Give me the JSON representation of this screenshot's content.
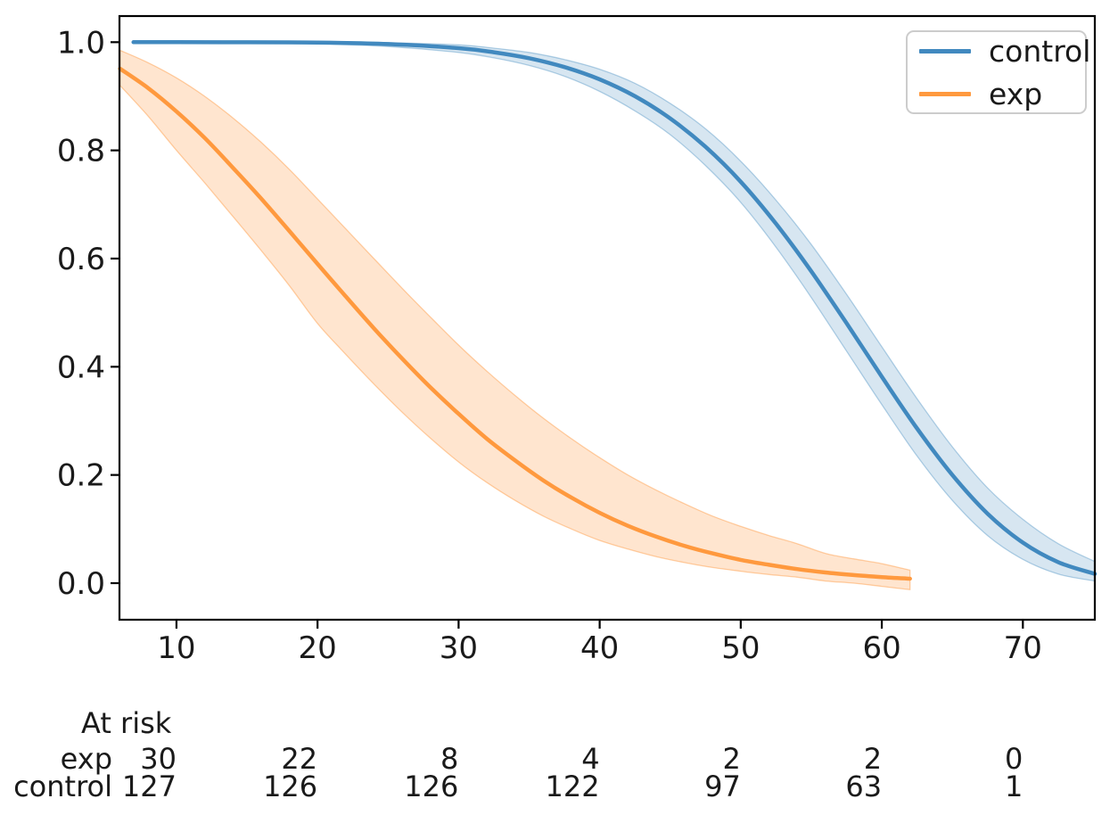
{
  "legend": {
    "items": [
      {
        "label": "control",
        "color": "#4189bf"
      },
      {
        "label": "exp",
        "color": "#ff993e"
      }
    ]
  },
  "at_risk": {
    "title": "At risk",
    "rows": [
      {
        "label": "exp",
        "counts": [
          "30",
          "22",
          "8",
          "4",
          "2",
          "2",
          "0"
        ]
      },
      {
        "label": "control",
        "counts": [
          "127",
          "126",
          "126",
          "122",
          "97",
          "63",
          "1"
        ]
      }
    ]
  },
  "chart_data": {
    "type": "line",
    "title": "",
    "xlabel": "",
    "ylabel": "",
    "grid": false,
    "legend_position": "upper right",
    "xlim": [
      5.96,
      75.1
    ],
    "ylim": [
      -0.0676,
      1.0483
    ],
    "x_ticks": [
      10,
      20,
      30,
      40,
      50,
      60,
      70
    ],
    "x_tick_labels": [
      "10",
      "20",
      "30",
      "40",
      "50",
      "60",
      "70"
    ],
    "y_ticks": [
      0.0,
      0.2,
      0.4,
      0.6,
      0.8,
      1.0
    ],
    "y_tick_labels": [
      "0.0",
      "0.2",
      "0.4",
      "0.6",
      "0.8",
      "1.0"
    ],
    "series": [
      {
        "name": "control",
        "line_color": "#4189bf",
        "band_fill": "rgba(31,119,180,0.18)",
        "band_edge": "rgba(31,119,180,0.32)",
        "points_format": [
          "x",
          "survival",
          "ci_low",
          "ci_high"
        ],
        "points": [
          [
            6.95,
            1.0,
            1.0,
            1.0
          ],
          [
            10,
            1.0,
            0.9995,
            1.0
          ],
          [
            15,
            0.9999,
            0.999,
            1.0
          ],
          [
            20,
            0.9992,
            0.997,
            1.0
          ],
          [
            25,
            0.9965,
            0.992,
            0.999
          ],
          [
            30,
            0.989,
            0.981,
            0.995
          ],
          [
            32.5,
            0.9814,
            0.971,
            0.989
          ],
          [
            35,
            0.9703,
            0.957,
            0.981
          ],
          [
            37.5,
            0.954,
            0.937,
            0.968
          ],
          [
            40,
            0.9312,
            0.909,
            0.95
          ],
          [
            42.5,
            0.9001,
            0.873,
            0.924
          ],
          [
            45,
            0.859,
            0.829,
            0.887
          ],
          [
            47.5,
            0.8066,
            0.772,
            0.84
          ],
          [
            50,
            0.742,
            0.704,
            0.78
          ],
          [
            52.5,
            0.6644,
            0.621,
            0.708
          ],
          [
            55,
            0.5764,
            0.528,
            0.626
          ],
          [
            57.5,
            0.4806,
            0.429,
            0.534
          ],
          [
            60,
            0.3816,
            0.33,
            0.437
          ],
          [
            62.5,
            0.2859,
            0.235,
            0.341
          ],
          [
            65,
            0.2,
            0.153,
            0.252
          ],
          [
            67.5,
            0.1284,
            0.088,
            0.176
          ],
          [
            70,
            0.0749,
            0.044,
            0.118
          ],
          [
            72.5,
            0.0389,
            0.017,
            0.073
          ],
          [
            75.1,
            0.0171,
            0.004,
            0.04
          ]
        ]
      },
      {
        "name": "exp",
        "line_color": "#ff993e",
        "band_fill": "rgba(255,127,14,0.2)",
        "band_edge": "rgba(255,127,14,0.35)",
        "points_format": [
          "x",
          "survival",
          "ci_low",
          "ci_high"
        ],
        "points": [
          [
            6,
            0.951,
            0.92,
            0.985
          ],
          [
            8,
            0.915,
            0.863,
            0.962
          ],
          [
            10,
            0.872,
            0.8,
            0.934
          ],
          [
            12,
            0.823,
            0.74,
            0.9
          ],
          [
            14,
            0.768,
            0.678,
            0.86
          ],
          [
            16,
            0.711,
            0.615,
            0.815
          ],
          [
            18,
            0.651,
            0.55,
            0.765
          ],
          [
            20,
            0.59,
            0.48,
            0.71
          ],
          [
            22,
            0.53,
            0.423,
            0.655
          ],
          [
            24,
            0.471,
            0.368,
            0.6
          ],
          [
            26,
            0.415,
            0.316,
            0.545
          ],
          [
            28,
            0.362,
            0.268,
            0.492
          ],
          [
            30,
            0.313,
            0.224,
            0.44
          ],
          [
            32,
            0.267,
            0.186,
            0.392
          ],
          [
            34,
            0.227,
            0.153,
            0.347
          ],
          [
            36,
            0.19,
            0.124,
            0.305
          ],
          [
            38,
            0.158,
            0.1,
            0.267
          ],
          [
            40,
            0.13,
            0.079,
            0.232
          ],
          [
            42,
            0.106,
            0.063,
            0.2
          ],
          [
            44,
            0.086,
            0.049,
            0.172
          ],
          [
            46,
            0.069,
            0.038,
            0.147
          ],
          [
            48,
            0.055,
            0.029,
            0.124
          ],
          [
            50,
            0.043,
            0.022,
            0.105
          ],
          [
            52,
            0.034,
            0.016,
            0.088
          ],
          [
            54,
            0.026,
            0.011,
            0.073
          ],
          [
            56,
            0.0198,
            0.004,
            0.055
          ],
          [
            58,
            0.015,
            0.0,
            0.045
          ],
          [
            60,
            0.0112,
            -0.006,
            0.036
          ],
          [
            62,
            0.0083,
            -0.012,
            0.024
          ]
        ]
      }
    ]
  }
}
